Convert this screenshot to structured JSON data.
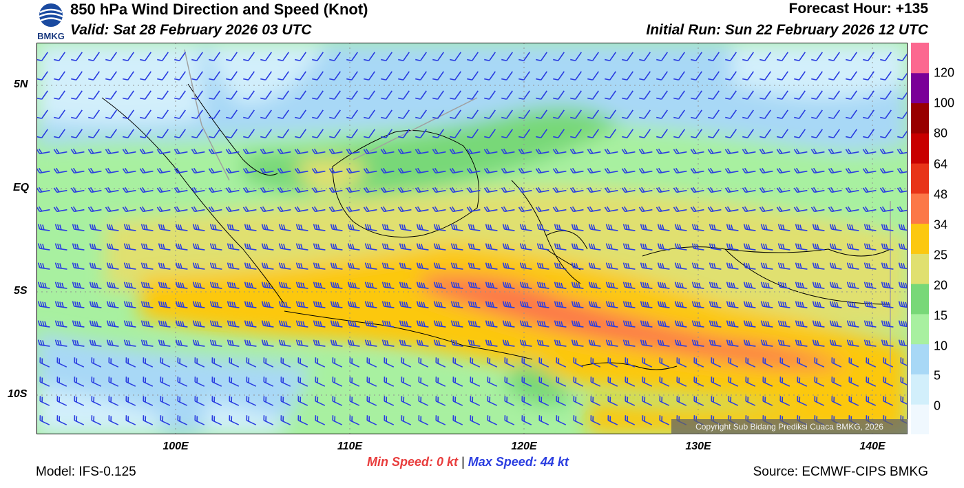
{
  "header": {
    "title": "850 hPa Wind Direction and Speed (Knot)",
    "valid": "Valid: Sat 28 February 2026 03 UTC",
    "forecast_hour": "Forecast Hour: +135",
    "initial_run": "Initial Run: Sun 22 February 2026 12 UTC",
    "logo_text": "BMKG"
  },
  "map": {
    "lat_labels": [
      "5N",
      "EQ",
      "5S",
      "10S"
    ],
    "lon_labels": [
      "100E",
      "110E",
      "120E",
      "130E",
      "140E"
    ],
    "copyright": "Copyright Sub Bidang Prediksi Cuaca BMKG, 2026",
    "barb_color": "#2a3de0"
  },
  "colorbar": {
    "labels": [
      "120",
      "100",
      "80",
      "64",
      "48",
      "34",
      "25",
      "20",
      "15",
      "10",
      "5",
      "0"
    ],
    "colors": [
      "#f0f8fe",
      "#d2effb",
      "#a8d8f6",
      "#a8f0a0",
      "#78d878",
      "#e0e070",
      "#fcc810",
      "#fc7848",
      "#e83418",
      "#c80000",
      "#980000",
      "#7a0098",
      "#fc6890"
    ]
  },
  "footer": {
    "model": "Model: IFS-0.125",
    "source": "Source: ECMWF-CIPS BMKG",
    "min_label": "Min Speed:",
    "min_value": "0 kt",
    "separator": "|",
    "max_label": "Max Speed:",
    "max_value": "44 kt"
  }
}
